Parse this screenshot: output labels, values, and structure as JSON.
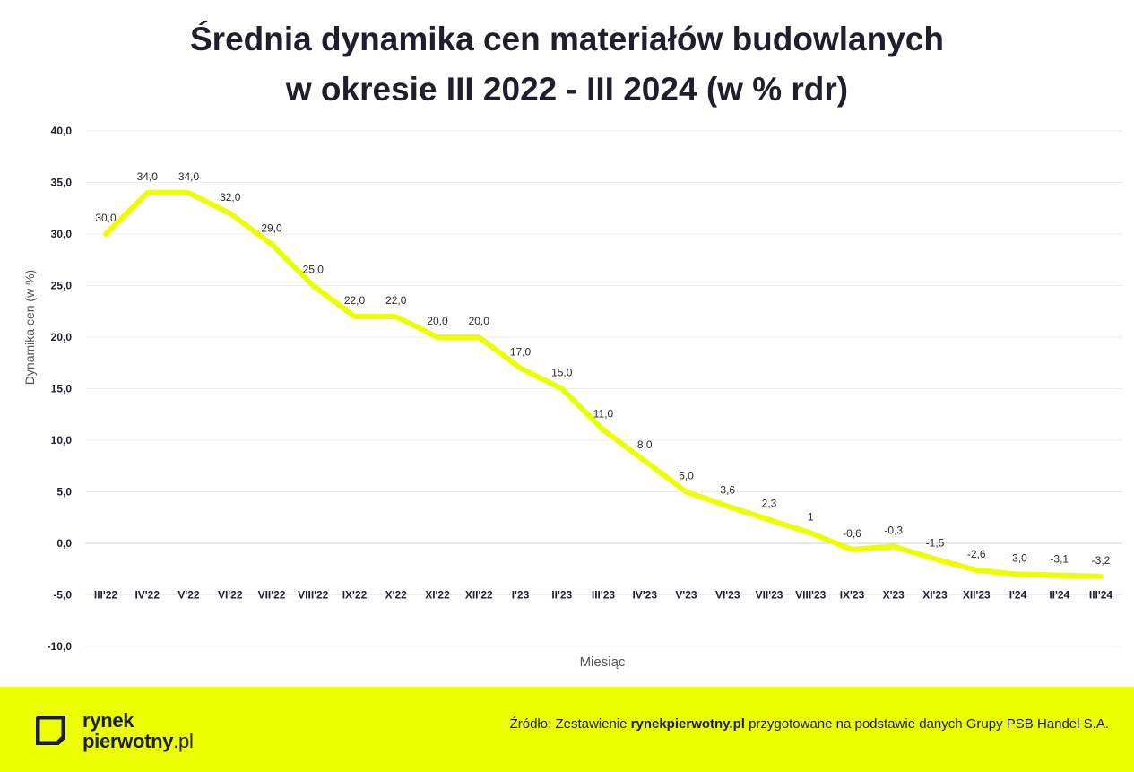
{
  "title_line1": "Średnia dynamika cen materiałów budowlanych",
  "title_line2": "w okresie III 2022 - III 2024 (w % rdr)",
  "chart_data": {
    "type": "line",
    "title": "Średnia dynamika cen materiałów budowlanych w okresie III 2022 - III 2024 (w % rdr)",
    "xlabel": "Miesiąc",
    "ylabel": "Dynamika cen (w %)",
    "ylim": [
      -10,
      40
    ],
    "yticks": [
      40,
      35,
      30,
      25,
      20,
      15,
      10,
      5,
      0,
      -5,
      -10
    ],
    "ytick_labels": [
      "40,0",
      "35,0",
      "30,0",
      "25,0",
      "20,0",
      "15,0",
      "10,0",
      "5,0",
      "0,0",
      "-5,0",
      "-10,0"
    ],
    "grid": true,
    "categories": [
      "III'22",
      "IV'22",
      "V'22",
      "VI'22",
      "VII'22",
      "VIII'22",
      "IX'22",
      "X'22",
      "XI'22",
      "XII'22",
      "I'23",
      "II'23",
      "III'23",
      "IV'23",
      "V'23",
      "VI'23",
      "VII'23",
      "VIII'23",
      "IX'23",
      "X'23",
      "XI'23",
      "XII'23",
      "I'24",
      "II'24",
      "III'24"
    ],
    "series": [
      {
        "color": "#ebff00",
        "values": [
          30.0,
          34.0,
          34.0,
          32.0,
          29.0,
          25.0,
          22.0,
          22.0,
          20.0,
          20.0,
          17.0,
          15.0,
          11.0,
          8.0,
          5.0,
          3.6,
          2.3,
          1,
          -0.6,
          -0.3,
          -1.5,
          -2.6,
          -3.0,
          -3.1,
          -3.2
        ],
        "labels": [
          "30,0",
          "34,0",
          "34,0",
          "32,0",
          "29,0",
          "25,0",
          "22,0",
          "22,0",
          "20,0",
          "20,0",
          "17,0",
          "15,0",
          "11,0",
          "8,0",
          "5,0",
          "3,6",
          "2,3",
          "1",
          "-0,6",
          "-0,3",
          "-1,5",
          "-2,6",
          "-3,0",
          "-3,1",
          "-3,2"
        ]
      }
    ]
  },
  "footer": {
    "logo_line1": "rynek",
    "logo_line2_main": "pierwotny",
    "logo_line2_suffix": ".pl",
    "source_prefix": "Źródło: Zestawienie ",
    "source_bold": "rynekpierwotny.pl",
    "source_suffix": " przygotowane na podstawie danych Grupy PSB Handel S.A.",
    "background_color": "#ebff00"
  }
}
